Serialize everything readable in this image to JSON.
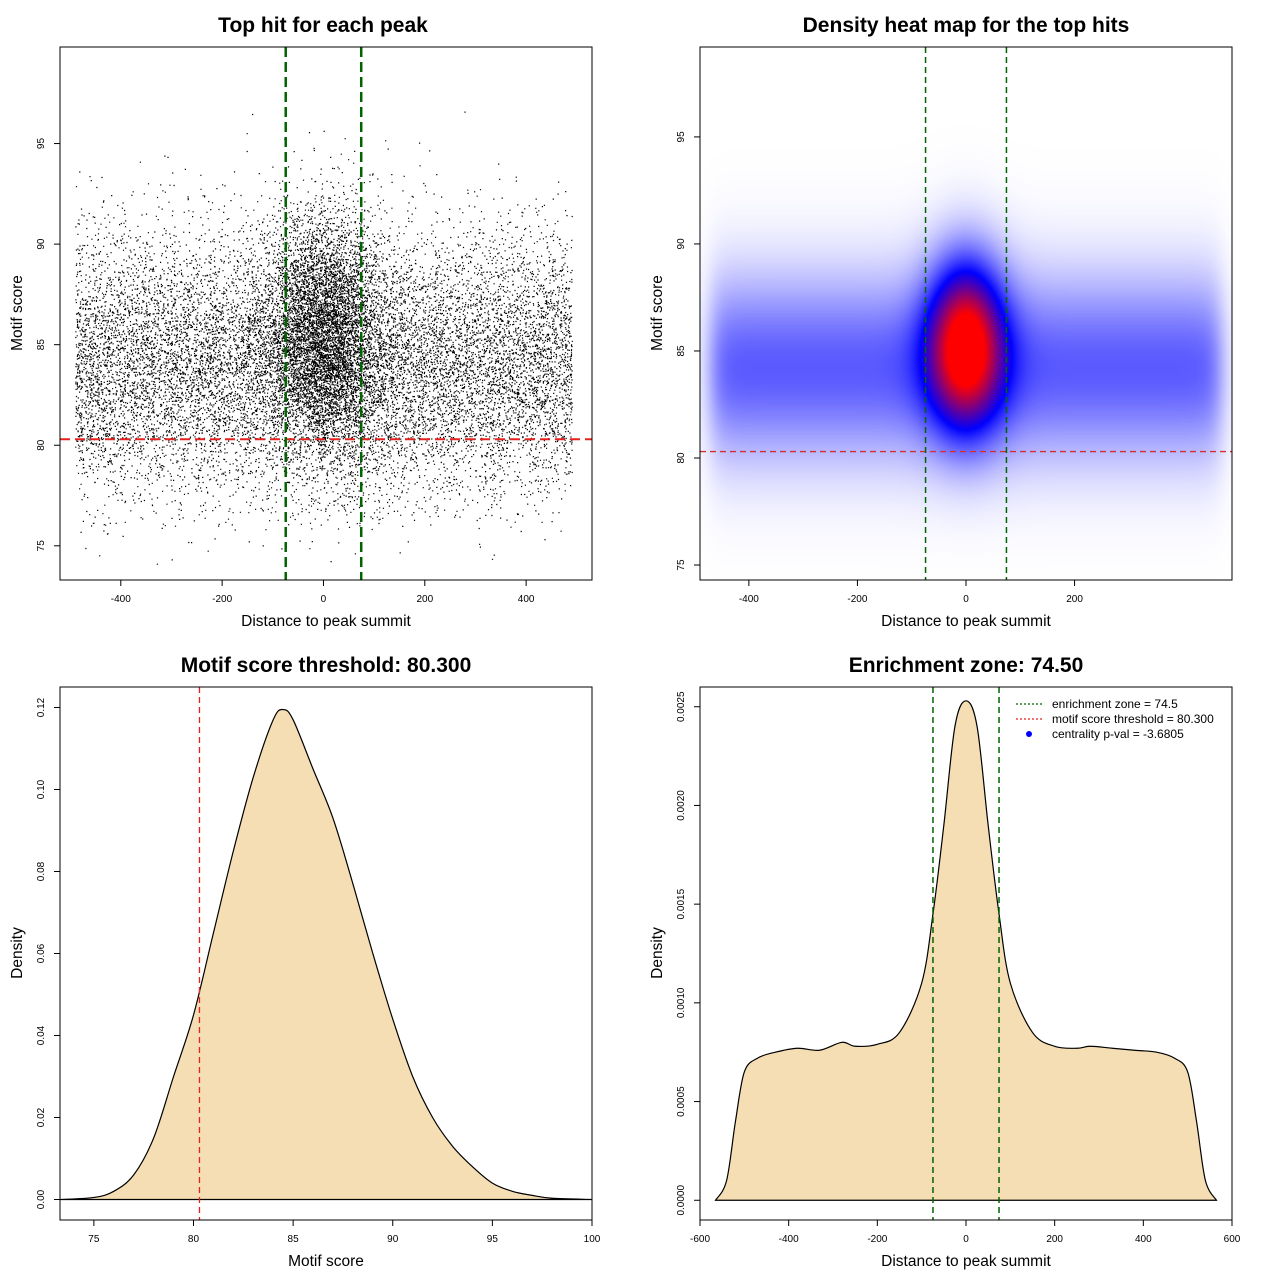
{
  "chart_data": [
    {
      "type": "scatter",
      "title": "Top hit for each peak",
      "xlabel": "Distance to peak summit",
      "ylabel": "Motif score",
      "xlim": [
        -520,
        530
      ],
      "ylim": [
        73.3,
        99.8
      ],
      "x_ticks": [
        -400,
        -200,
        0,
        200,
        400
      ],
      "y_ticks": [
        75,
        80,
        85,
        90,
        95
      ],
      "threshold_y": 80.3,
      "threshold_color": "#e8211c",
      "zone_x": [
        -74.5,
        74.5
      ],
      "zone_color": "#006400",
      "point_color": "#000000",
      "distribution": {
        "background": {
          "x_range": [
            -490,
            490
          ],
          "score_mean": 84.0,
          "score_sd": 3.3,
          "approx_points": 14000
        },
        "central": {
          "x_center": 0,
          "x_sd": 60,
          "score_mean": 85.5,
          "score_sd": 3.0,
          "approx_points": 6000
        }
      }
    },
    {
      "type": "heatmap",
      "title": "Density heat map for the top hits",
      "xlabel": "Distance to peak summit",
      "ylabel": "Motif score",
      "xlim": [
        -490,
        490
      ],
      "ylim": [
        74.3,
        99.2
      ],
      "x_ticks": [
        -400,
        -200,
        0,
        200
      ],
      "y_ticks": [
        75,
        80,
        85,
        90,
        95
      ],
      "threshold_y": 80.3,
      "threshold_color": "#d03030",
      "zone_x": [
        -74.5,
        74.5
      ],
      "zone_color": "#006400",
      "colors": [
        "#ffffff",
        "#0000ff",
        "#ff0000"
      ],
      "peak": {
        "x": 0,
        "y": 85
      }
    },
    {
      "type": "area",
      "title": "Motif score threshold: 80.300",
      "xlabel": "Motif score",
      "ylabel": "Density",
      "xlim": [
        73.3,
        100.0
      ],
      "ylim": [
        -0.005,
        0.125
      ],
      "x_ticks": [
        75,
        80,
        85,
        90,
        95,
        100
      ],
      "y_ticks": [
        0.0,
        0.02,
        0.04,
        0.06,
        0.08,
        0.1,
        0.12
      ],
      "y_tick_labels": [
        "0.00",
        "0.02",
        "0.04",
        "0.06",
        "0.08",
        "0.10",
        "0.12"
      ],
      "fill_color": "#f5deb3",
      "threshold_x": 80.3,
      "threshold_color": "#e8211c",
      "x": [
        73.3,
        75,
        76,
        77,
        78,
        79,
        80,
        81,
        82,
        83,
        84,
        84.5,
        85,
        86,
        87,
        88,
        89,
        90,
        91,
        92,
        93,
        94,
        95,
        96,
        97,
        98,
        100
      ],
      "y": [
        0.0,
        0.0005,
        0.002,
        0.006,
        0.015,
        0.03,
        0.045,
        0.065,
        0.085,
        0.103,
        0.117,
        0.1195,
        0.117,
        0.105,
        0.093,
        0.077,
        0.06,
        0.044,
        0.03,
        0.02,
        0.013,
        0.008,
        0.004,
        0.002,
        0.001,
        0.0003,
        0.0
      ]
    },
    {
      "type": "area",
      "title": "Enrichment zone: 74.50",
      "xlabel": "Distance to peak summit",
      "ylabel": "Density",
      "xlim": [
        -600,
        600
      ],
      "ylim": [
        -0.0001,
        0.0026
      ],
      "x_ticks": [
        -600,
        -400,
        -200,
        0,
        200,
        400,
        600
      ],
      "y_ticks": [
        0.0,
        0.0005,
        0.001,
        0.0015,
        0.002,
        0.0025
      ],
      "y_tick_labels": [
        "0.0000",
        "0.0005",
        "0.0010",
        "0.0015",
        "0.0020",
        "0.0025"
      ],
      "fill_color": "#f5deb3",
      "zone_x": [
        -74.5,
        74.5
      ],
      "zone_color": "#006400",
      "x": [
        -565,
        -540,
        -520,
        -500,
        -470,
        -430,
        -380,
        -330,
        -280,
        -250,
        -200,
        -150,
        -100,
        -74.5,
        -50,
        -25,
        0,
        25,
        50,
        74.5,
        100,
        150,
        200,
        250,
        280,
        330,
        380,
        430,
        470,
        500,
        520,
        540,
        565
      ],
      "y": [
        0.0,
        0.0001,
        0.0004,
        0.00065,
        0.00072,
        0.00075,
        0.00077,
        0.00076,
        0.0008,
        0.00078,
        0.00079,
        0.00085,
        0.0011,
        0.00145,
        0.0019,
        0.0024,
        0.00253,
        0.0024,
        0.0019,
        0.00145,
        0.0011,
        0.00085,
        0.00078,
        0.00077,
        0.00078,
        0.00077,
        0.00076,
        0.00075,
        0.00072,
        0.00065,
        0.0004,
        0.0001,
        0.0
      ],
      "legend": [
        {
          "label": "enrichment zone = 74.5",
          "color": "#006400",
          "style": "dotted-line"
        },
        {
          "label": "motif score threshold = 80.300",
          "color": "#e8211c",
          "style": "dotted-line"
        },
        {
          "label": "centrality p-val = -3.6805",
          "color": "#0000ff",
          "style": "dot"
        }
      ]
    }
  ]
}
